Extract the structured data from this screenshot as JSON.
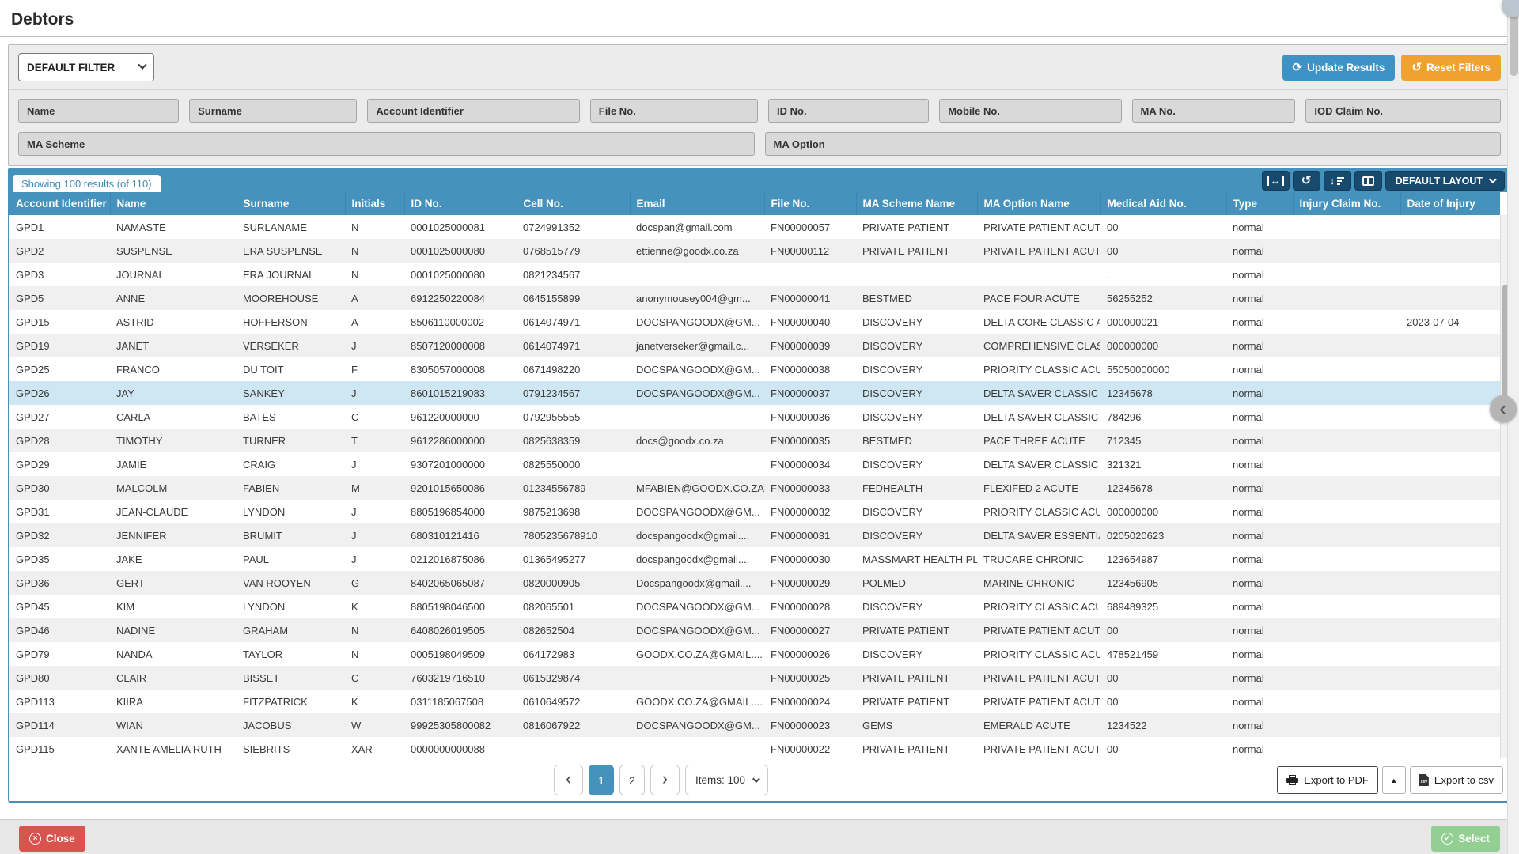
{
  "page": {
    "title": "Debtors"
  },
  "filters": {
    "preset_label": "DEFAULT FILTER",
    "update_button": "Update Results",
    "reset_button": "Reset Filters",
    "fields_row1": [
      "Name",
      "Surname",
      "Account Identifier",
      "File No.",
      "ID No.",
      "Mobile No.",
      "MA No.",
      "IOD Claim No."
    ],
    "fields_row2": [
      "MA Scheme",
      "MA Option"
    ]
  },
  "table": {
    "results_badge": "Showing 100 results (of 110)",
    "layout_button": "DEFAULT LAYOUT",
    "columns": [
      "Account Identifier",
      "Name",
      "Surname",
      "Initials",
      "ID No.",
      "Cell No.",
      "Email",
      "File No.",
      "MA Scheme Name",
      "MA Option Name",
      "Medical Aid No.",
      "Type",
      "Injury Claim No.",
      "Date of Injury"
    ],
    "selected_row_index": 7,
    "rows": [
      [
        "GPD1",
        "NAMASTE",
        "SURLANAME",
        "N",
        "0001025000081",
        "0724991352",
        "docspan@gmail.com",
        "FN00000057",
        "PRIVATE PATIENT",
        "PRIVATE PATIENT ACUTE",
        "00",
        "normal",
        "",
        ""
      ],
      [
        "GPD2",
        "SUSPENSE",
        "ERA SUSPENSE",
        "N",
        "0001025000080",
        "0768515779",
        "ettienne@goodx.co.za",
        "FN00000112",
        "PRIVATE PATIENT",
        "PRIVATE PATIENT ACUTE",
        "00",
        "normal",
        "",
        ""
      ],
      [
        "GPD3",
        "JOURNAL",
        "ERA JOURNAL",
        "N",
        "0001025000080",
        "0821234567",
        "",
        "",
        "",
        "",
        ".",
        "normal",
        "",
        ""
      ],
      [
        "GPD5",
        "ANNE",
        "MOOREHOUSE",
        "A",
        "6912250220084",
        "0645155899",
        "anonymousey004@gm...",
        "FN00000041",
        "BESTMED",
        "PACE FOUR ACUTE",
        "56255252",
        "normal",
        "",
        ""
      ],
      [
        "GPD15",
        "ASTRID",
        "HOFFERSON",
        "A",
        "8506110000002",
        "0614074971",
        "DOCSPANGOODX@GM...",
        "FN00000040",
        "DISCOVERY",
        "DELTA CORE CLASSIC A...",
        "000000021",
        "normal",
        "",
        "2023-07-04"
      ],
      [
        "GPD19",
        "JANET",
        "VERSEKER",
        "J",
        "8507120000008",
        "0614074971",
        "janetverseker@gmail.c...",
        "FN00000039",
        "DISCOVERY",
        "COMPREHENSIVE CLAS...",
        "000000000",
        "normal",
        "",
        ""
      ],
      [
        "GPD25",
        "FRANCO",
        "DU TOIT",
        "F",
        "8305057000008",
        "0671498220",
        "DOCSPANGOODX@GM...",
        "FN00000038",
        "DISCOVERY",
        "PRIORITY CLASSIC ACUTE",
        "55050000000",
        "normal",
        "",
        ""
      ],
      [
        "GPD26",
        "JAY",
        "SANKEY",
        "J",
        "8601015219083",
        "0791234567",
        "DOCSPANGOODX@GM...",
        "FN00000037",
        "DISCOVERY",
        "DELTA SAVER CLASSIC ...",
        "12345678",
        "normal",
        "",
        ""
      ],
      [
        "GPD27",
        "CARLA",
        "BATES",
        "C",
        "961220000000",
        "0792955555",
        "",
        "FN00000036",
        "DISCOVERY",
        "DELTA SAVER CLASSIC ...",
        "784296",
        "normal",
        "",
        ""
      ],
      [
        "GPD28",
        "TIMOTHY",
        "TURNER",
        "T",
        "9612286000000",
        "0825638359",
        "docs@goodx.co.za",
        "FN00000035",
        "BESTMED",
        "PACE THREE ACUTE",
        "712345",
        "normal",
        "",
        ""
      ],
      [
        "GPD29",
        "JAMIE",
        "CRAIG",
        "J",
        "9307201000000",
        "0825550000",
        "",
        "FN00000034",
        "DISCOVERY",
        "DELTA SAVER CLASSIC ...",
        "321321",
        "normal",
        "",
        ""
      ],
      [
        "GPD30",
        "MALCOLM",
        "FABIEN",
        "M",
        "9201015650086",
        "01234556789",
        "MFABIEN@GOODX.CO.ZA",
        "FN00000033",
        "FEDHEALTH",
        "FLEXIFED 2 ACUTE",
        "12345678",
        "normal",
        "",
        ""
      ],
      [
        "GPD31",
        "JEAN-CLAUDE",
        "LYNDON",
        "J",
        "8805196854000",
        "9875213698",
        "DOCSPANGOODX@GM...",
        "FN00000032",
        "DISCOVERY",
        "PRIORITY CLASSIC ACUTE",
        "000000000",
        "normal",
        "",
        ""
      ],
      [
        "GPD32",
        "JENNIFER",
        "BRUMIT",
        "J",
        "680310121416",
        "7805235678910",
        "docspangoodx@gmail....",
        "FN00000031",
        "DISCOVERY",
        "DELTA SAVER ESSENTIA...",
        "0205020623",
        "normal",
        "",
        ""
      ],
      [
        "GPD35",
        "JAKE",
        "PAUL",
        "J",
        "0212016875086",
        "01365495277",
        "docspangoodx@gmail....",
        "FN00000030",
        "MASSMART HEALTH PLAN",
        "TRUCARE CHRONIC",
        "123654987",
        "normal",
        "",
        ""
      ],
      [
        "GPD36",
        "GERT",
        "VAN ROOYEN",
        "G",
        "8402065065087",
        "0820000905",
        "Docspangoodx@gmail....",
        "FN00000029",
        "POLMED",
        "MARINE CHRONIC",
        "123456905",
        "normal",
        "",
        ""
      ],
      [
        "GPD45",
        "KIM",
        "LYNDON",
        "K",
        "8805198046500",
        "082065501",
        "DOCSPANGOODX@GM...",
        "FN00000028",
        "DISCOVERY",
        "PRIORITY CLASSIC ACUTE",
        "689489325",
        "normal",
        "",
        ""
      ],
      [
        "GPD46",
        "NADINE",
        "GRAHAM",
        "N",
        "6408026019505",
        "082652504",
        "DOCSPANGOODX@GM...",
        "FN00000027",
        "PRIVATE PATIENT",
        "PRIVATE PATIENT ACUTE",
        "00",
        "normal",
        "",
        ""
      ],
      [
        "GPD79",
        "NANDA",
        "TAYLOR",
        "N",
        "0005198049509",
        "064172983",
        "GOODX.CO.ZA@GMAIL....",
        "FN00000026",
        "DISCOVERY",
        "PRIORITY CLASSIC ACUTE",
        "478521459",
        "normal",
        "",
        ""
      ],
      [
        "GPD80",
        "CLAIR",
        "BISSET",
        "C",
        "7603219716510",
        "0615329874",
        "",
        "FN00000025",
        "PRIVATE PATIENT",
        "PRIVATE PATIENT ACUTE",
        "00",
        "normal",
        "",
        ""
      ],
      [
        "GPD113",
        "KIIRA",
        "FITZPATRICK",
        "K",
        "0311185067508",
        "0610649572",
        "GOODX.CO.ZA@GMAIL....",
        "FN00000024",
        "PRIVATE PATIENT",
        "PRIVATE PATIENT ACUTE",
        "00",
        "normal",
        "",
        ""
      ],
      [
        "GPD114",
        "WIAN",
        "JACOBUS",
        "W",
        "99925305800082",
        "0816067922",
        "DOCSPANGOODX@GM...",
        "FN00000023",
        "GEMS",
        "EMERALD ACUTE",
        "1234522",
        "normal",
        "",
        ""
      ],
      [
        "GPD115",
        "XANTE AMELIA RUTH",
        "SIEBRITS",
        "XAR",
        "0000000000088",
        "",
        "",
        "FN00000022",
        "PRIVATE PATIENT",
        "PRIVATE PATIENT ACUTE",
        "00",
        "normal",
        "",
        ""
      ]
    ]
  },
  "pagination": {
    "pages": [
      "1",
      "2"
    ],
    "active_page": "1",
    "items_label": "Items: 100"
  },
  "export": {
    "pdf_label": "Export to PDF",
    "csv_label": "Export to csv"
  },
  "footer": {
    "close_label": "Close",
    "select_label": "Select"
  },
  "colors": {
    "accent_blue": "#4593bd",
    "toolbar_navy": "#184a6d",
    "update_blue": "#3d93c5",
    "reset_orange": "#f0a230",
    "close_red": "#d9534f",
    "select_green": "#93ce93",
    "selected_row": "#cfe7f2",
    "stripe_gray": "#f0f0f0"
  }
}
